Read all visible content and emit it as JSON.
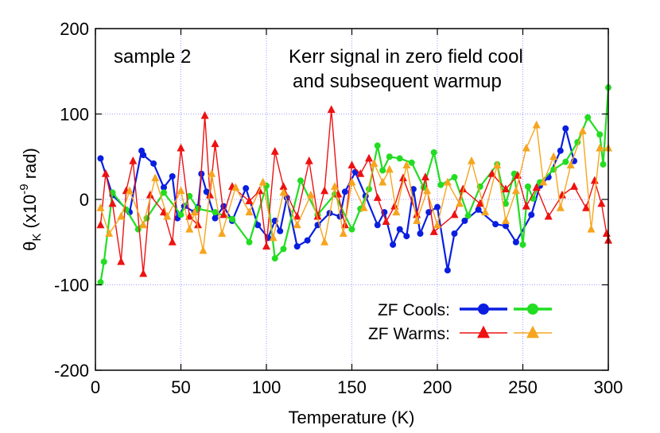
{
  "chart_data": {
    "type": "line",
    "title": "",
    "xlabel": "Temperature (K)",
    "ylabel_parts": {
      "theta": "θ",
      "sub": "K",
      "open": " (x10",
      "exp": "-9",
      "close": " rad)"
    },
    "xlim": [
      0,
      300
    ],
    "ylim": [
      -200,
      200
    ],
    "xticks": [
      0,
      50,
      100,
      150,
      200,
      250,
      300
    ],
    "yticks": [
      -200,
      -100,
      0,
      100,
      200
    ],
    "grid": true,
    "annotations": {
      "sample": "sample 2",
      "line1": "Kerr signal in zero field cool",
      "line2": "and subsequent warmup"
    },
    "legend": {
      "placement": "bottom-right",
      "cools_label": "ZF Cools:",
      "warms_label": "ZF Warms:"
    },
    "series": [
      {
        "name": "ZF Cool (blue)",
        "color": "#0a1ee0",
        "marker": "circle",
        "size": "large",
        "x": [
          3,
          10,
          20,
          27,
          28,
          34,
          40,
          45,
          48,
          52,
          58,
          60,
          62,
          65,
          70,
          75,
          80,
          88,
          95,
          101,
          105,
          108,
          112,
          118,
          124,
          130,
          137,
          143,
          146,
          152,
          158,
          165,
          169,
          174,
          178,
          182,
          186,
          190,
          195,
          200,
          206,
          210,
          216,
          224,
          234,
          240,
          246,
          255,
          260,
          265,
          272,
          275,
          280
        ],
        "y": [
          48,
          5,
          -15,
          57,
          52,
          42,
          14,
          27,
          -22,
          -8,
          -15,
          -9,
          30,
          9,
          -22,
          -8,
          -25,
          13,
          -30,
          -45,
          -25,
          -37,
          2,
          -55,
          -48,
          -30,
          -16,
          -20,
          9,
          32,
          4,
          -30,
          -15,
          -53,
          -35,
          -43,
          12,
          -40,
          -15,
          -9,
          -83,
          -40,
          -25,
          -12,
          -29,
          -31,
          -50,
          -18,
          16,
          26,
          57,
          83,
          45
        ]
      },
      {
        "name": "ZF Cool (green)",
        "color": "#22dd22",
        "marker": "circle",
        "size": "large",
        "x": [
          3,
          5,
          10,
          18,
          25,
          30,
          40,
          50,
          55,
          60,
          70,
          80,
          90,
          100,
          105,
          110,
          120,
          130,
          140,
          150,
          155,
          160,
          165,
          168,
          172,
          178,
          185,
          192,
          198,
          202,
          210,
          218,
          225,
          235,
          240,
          245,
          250,
          253,
          256,
          260,
          268,
          275,
          282,
          288,
          295,
          297,
          300
        ],
        "y": [
          -97,
          -73,
          8,
          -12,
          -35,
          -22,
          8,
          -18,
          4,
          -11,
          -15,
          -23,
          -50,
          16,
          -69,
          -58,
          22,
          -18,
          6,
          -35,
          -11,
          12,
          63,
          34,
          50,
          48,
          43,
          14,
          55,
          17,
          26,
          -19,
          15,
          41,
          -5,
          30,
          -53,
          15,
          1,
          20,
          35,
          44,
          67,
          96,
          76,
          41,
          131
        ]
      },
      {
        "name": "ZF Warm (red)",
        "color": "#ee1111",
        "marker": "triangle",
        "size": "small",
        "x": [
          3,
          6,
          10,
          15,
          18,
          22,
          28,
          32,
          40,
          45,
          50,
          55,
          60,
          64,
          67,
          70,
          75,
          80,
          90,
          96,
          100,
          105,
          110,
          118,
          125,
          130,
          134,
          138,
          142,
          146,
          150,
          155,
          160,
          165,
          170,
          175,
          180,
          188,
          193,
          198,
          210,
          215,
          225,
          232,
          240,
          247,
          252,
          258,
          265,
          273,
          280,
          287,
          292,
          296,
          299,
          300
        ],
        "y": [
          -30,
          30,
          -5,
          -73,
          10,
          45,
          -87,
          5,
          -15,
          -50,
          60,
          -20,
          -30,
          98,
          5,
          65,
          -18,
          15,
          -2,
          10,
          -55,
          56,
          15,
          -20,
          45,
          -20,
          10,
          105,
          6,
          -30,
          40,
          30,
          48,
          2,
          -26,
          -8,
          25,
          -18,
          26,
          -38,
          -18,
          12,
          -5,
          30,
          12,
          28,
          -8,
          14,
          -20,
          5,
          15,
          -10,
          22,
          -5,
          -40,
          -48
        ]
      },
      {
        "name": "ZF Warm (orange)",
        "color": "#f7a51e",
        "marker": "triangle",
        "size": "small",
        "x": [
          3,
          8,
          15,
          20,
          28,
          35,
          42,
          50,
          55,
          58,
          63,
          68,
          74,
          82,
          90,
          98,
          104,
          110,
          118,
          126,
          134,
          140,
          145,
          150,
          157,
          163,
          168,
          172,
          176,
          182,
          188,
          194,
          200,
          206,
          213,
          220,
          228,
          235,
          240,
          246,
          252,
          258,
          262,
          268,
          272,
          278,
          285,
          290,
          295,
          300
        ],
        "y": [
          -10,
          -40,
          -20,
          10,
          -30,
          25,
          -20,
          10,
          -35,
          -15,
          -60,
          30,
          -40,
          14,
          -15,
          20,
          -45,
          8,
          -30,
          5,
          -50,
          15,
          -40,
          20,
          -10,
          42,
          20,
          35,
          -15,
          40,
          -25,
          10,
          -30,
          20,
          -5,
          45,
          -15,
          40,
          -25,
          10,
          60,
          87,
          20,
          50,
          -10,
          40,
          80,
          -35,
          60,
          60
        ]
      }
    ]
  }
}
